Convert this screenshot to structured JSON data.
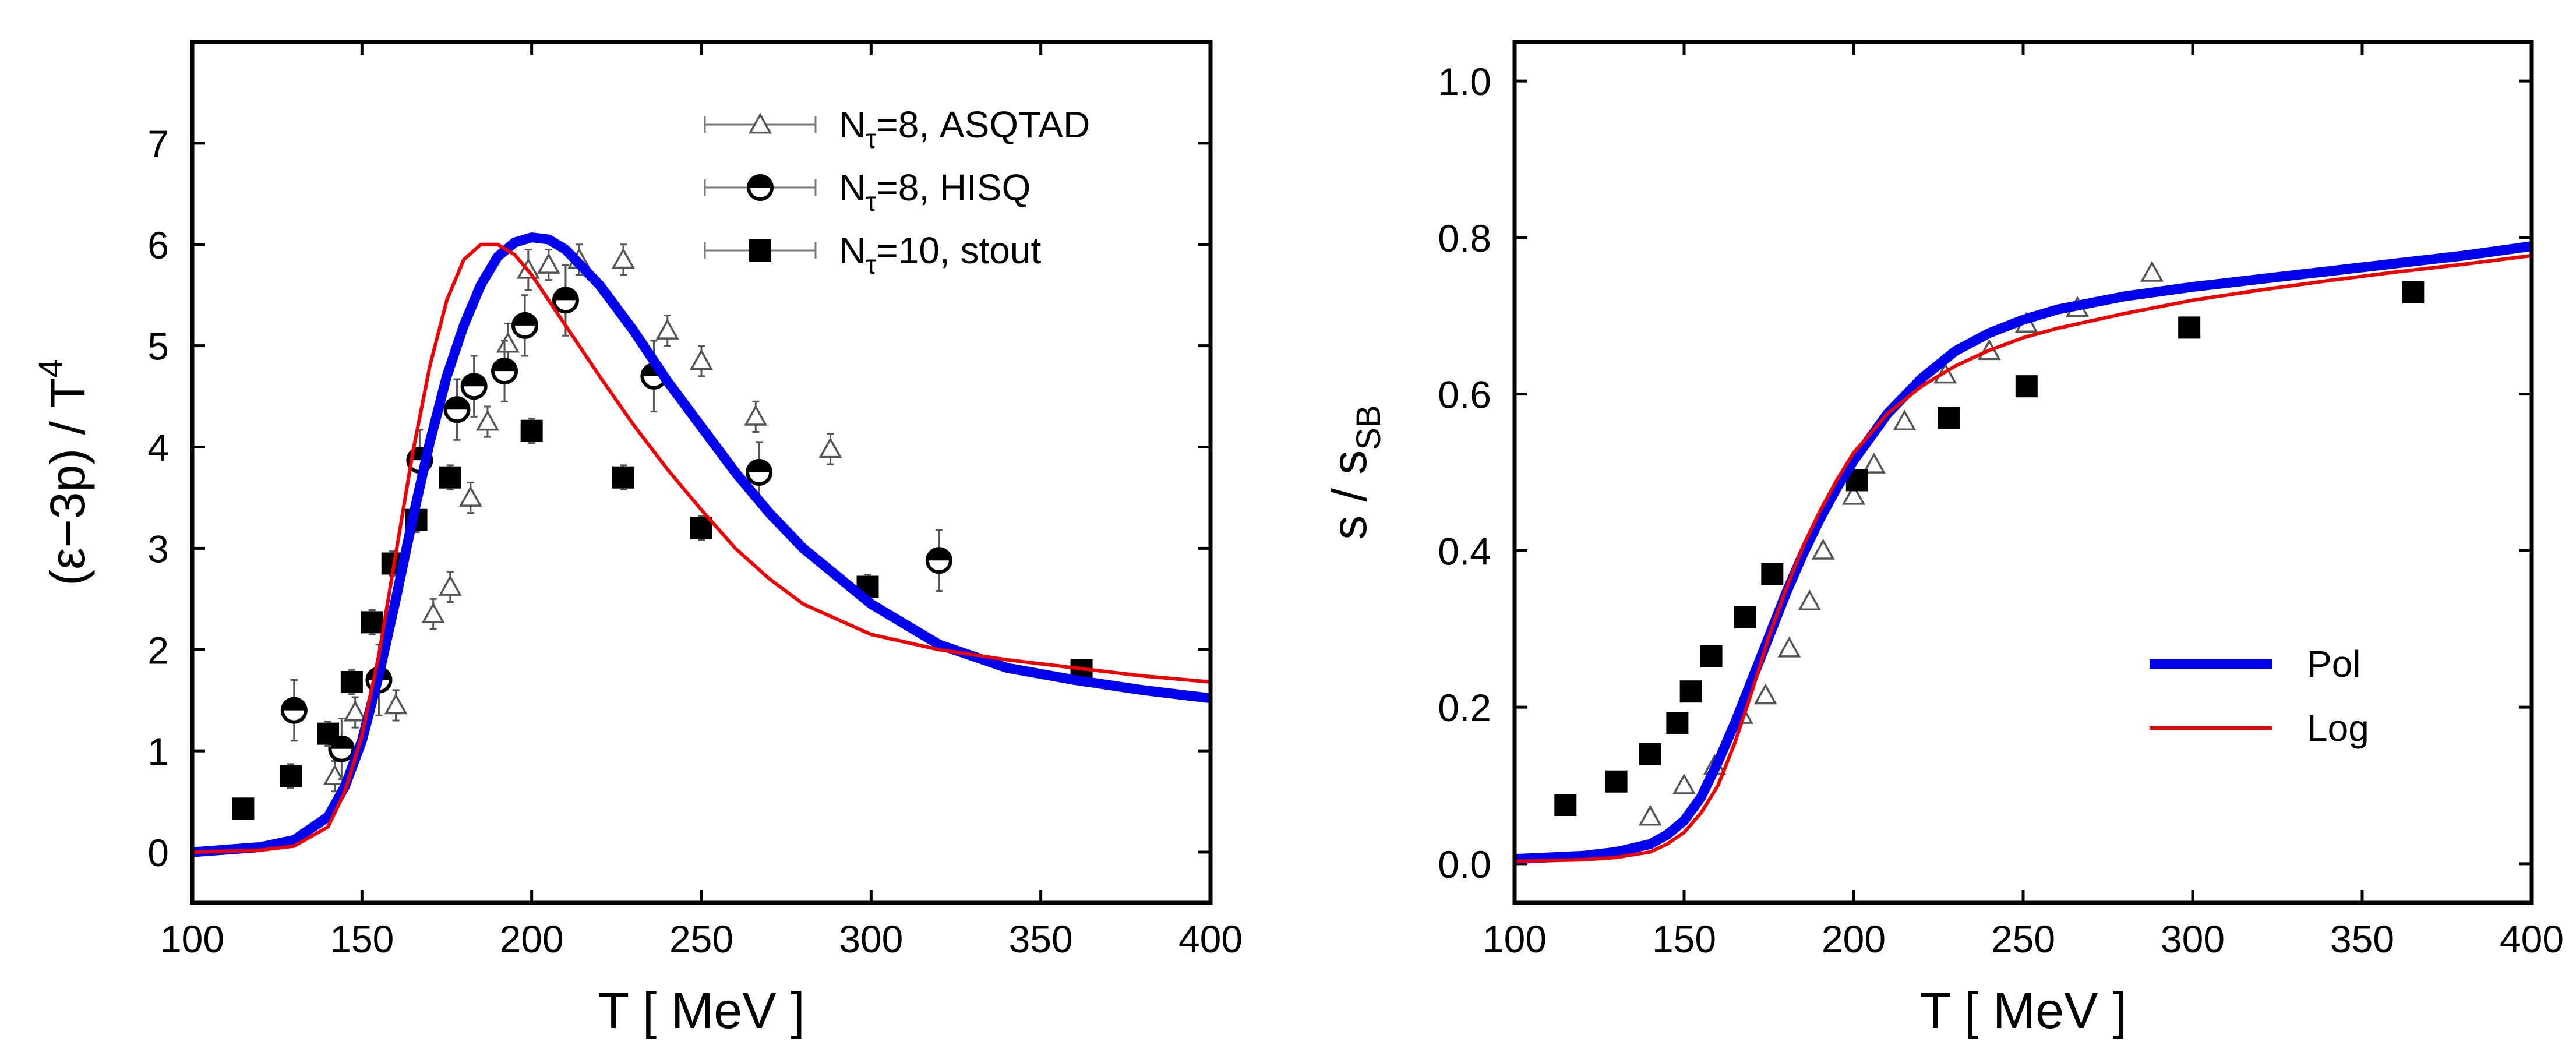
{
  "chart_data": [
    {
      "type": "scatter",
      "panel": "left",
      "xlabel": "T  [ MeV ]",
      "ylabel_parts": [
        "(ε−3p) / T",
        "4"
      ],
      "xlim": [
        100,
        400
      ],
      "ylim": [
        -0.5,
        8
      ],
      "xticks": [
        100,
        150,
        200,
        250,
        300,
        350,
        400
      ],
      "yticks": [
        0,
        1,
        2,
        3,
        4,
        5,
        6,
        7
      ],
      "legend_position": "top-right",
      "grid": false,
      "series": [
        {
          "name": "Nτ=8, ASQTAD",
          "legend_parts": [
            "N",
            "τ",
            "=8, ASQTAD"
          ],
          "marker": "open-triangle",
          "color": "#555555",
          "x": [
            142,
            148,
            160,
            171,
            176,
            182,
            187,
            193,
            199,
            205,
            214,
            227,
            240,
            250,
            266,
            288
          ],
          "y": [
            0.75,
            1.38,
            1.45,
            2.35,
            2.62,
            3.5,
            4.25,
            5.02,
            5.75,
            5.8,
            5.85,
            5.85,
            5.15,
            4.85,
            4.3,
            3.98
          ],
          "err": [
            0.15,
            0.15,
            0.15,
            0.15,
            0.15,
            0.15,
            0.15,
            0.2,
            0.2,
            0.15,
            0.15,
            0.15,
            0.15,
            0.15,
            0.15,
            0.15
          ]
        },
        {
          "name": "Nτ=8, HISQ",
          "legend_parts": [
            "N",
            "τ",
            "=8, HISQ"
          ],
          "marker": "half-filled-circle",
          "color": "#000000",
          "x": [
            130,
            144,
            155,
            167,
            178,
            183,
            192,
            198,
            210,
            236,
            267,
            320
          ],
          "y": [
            1.4,
            1.02,
            1.7,
            3.87,
            4.37,
            4.6,
            4.75,
            5.2,
            5.45,
            4.7,
            3.75,
            2.88
          ],
          "err": [
            0.3,
            0.3,
            0.35,
            0.3,
            0.3,
            0.3,
            0.3,
            0.3,
            0.35,
            0.35,
            0.3,
            0.3
          ]
        },
        {
          "name": "Nτ=10, stout",
          "legend_parts": [
            "N",
            "τ",
            "=10, stout"
          ],
          "marker": "filled-square",
          "color": "#000000",
          "x": [
            115,
            129,
            140,
            147,
            153,
            159,
            166,
            176,
            200,
            227,
            250,
            299,
            362
          ],
          "y": [
            0.43,
            0.75,
            1.17,
            1.68,
            2.27,
            2.85,
            3.28,
            3.7,
            4.16,
            3.7,
            3.2,
            2.62,
            1.8
          ],
          "err": [
            0.1,
            0.12,
            0.12,
            0.12,
            0.12,
            0.12,
            0.12,
            0.12,
            0.12,
            0.12,
            0.12,
            0.12,
            0.1
          ]
        },
        {
          "name": "Pol",
          "type": "line",
          "color": "#0000ee",
          "x": [
            100,
            120,
            130,
            140,
            145,
            150,
            155,
            160,
            165,
            170,
            175,
            180,
            185,
            190,
            195,
            200,
            205,
            210,
            220,
            230,
            240,
            250,
            260,
            270,
            280,
            300,
            320,
            340,
            360,
            380,
            400
          ],
          "y": [
            0.0,
            0.05,
            0.12,
            0.35,
            0.65,
            1.1,
            1.75,
            2.5,
            3.3,
            4.05,
            4.7,
            5.2,
            5.6,
            5.88,
            6.02,
            6.07,
            6.05,
            5.95,
            5.6,
            5.15,
            4.65,
            4.2,
            3.75,
            3.35,
            3.0,
            2.45,
            2.05,
            1.82,
            1.7,
            1.6,
            1.52
          ]
        },
        {
          "name": "Log",
          "type": "line",
          "color": "#ee0000",
          "x": [
            100,
            120,
            130,
            140,
            145,
            150,
            155,
            160,
            165,
            170,
            175,
            180,
            185,
            190,
            195,
            200,
            205,
            210,
            220,
            230,
            240,
            250,
            260,
            270,
            280,
            300,
            320,
            340,
            360,
            380,
            400
          ],
          "y": [
            0.0,
            0.02,
            0.06,
            0.25,
            0.6,
            1.15,
            1.95,
            2.95,
            3.95,
            4.8,
            5.45,
            5.85,
            6.0,
            6.0,
            5.9,
            5.7,
            5.45,
            5.2,
            4.7,
            4.22,
            3.78,
            3.38,
            3.0,
            2.7,
            2.45,
            2.15,
            2.0,
            1.9,
            1.82,
            1.74,
            1.68
          ]
        }
      ]
    },
    {
      "type": "scatter",
      "panel": "right",
      "xlabel": "T  [ MeV ]",
      "ylabel_parts": [
        "s / s",
        "SB"
      ],
      "xlim": [
        100,
        400
      ],
      "ylim": [
        -0.05,
        1.05
      ],
      "xticks": [
        100,
        150,
        200,
        250,
        300,
        350,
        400
      ],
      "yticks": [
        0.0,
        0.2,
        0.4,
        0.6,
        0.8,
        1.0
      ],
      "ytick_labels": [
        "0.0",
        "0.2",
        "0.4",
        "0.6",
        "0.8",
        "1.0"
      ],
      "legend_position": "bottom-right",
      "grid": false,
      "series": [
        {
          "name": "open triangles",
          "marker": "open-triangle",
          "color": "#555555",
          "x": [
            140,
            150,
            159,
            167,
            174,
            181,
            187,
            191,
            200,
            206,
            215,
            227,
            240,
            251,
            266,
            288
          ],
          "y": [
            0.06,
            0.1,
            0.125,
            0.19,
            0.215,
            0.275,
            0.335,
            0.4,
            0.47,
            0.51,
            0.565,
            0.625,
            0.655,
            0.69,
            0.71,
            0.755
          ]
        },
        {
          "name": "filled squares",
          "marker": "filled-square",
          "color": "#000000",
          "x": [
            115,
            130,
            140,
            148,
            152,
            158,
            168,
            176,
            201,
            228,
            251,
            299,
            365
          ],
          "y": [
            0.075,
            0.105,
            0.14,
            0.18,
            0.22,
            0.265,
            0.315,
            0.37,
            0.49,
            0.57,
            0.61,
            0.685,
            0.73
          ]
        },
        {
          "name": "Pol",
          "type": "line",
          "color": "#0000ee",
          "x": [
            100,
            120,
            130,
            140,
            145,
            150,
            155,
            160,
            165,
            170,
            175,
            180,
            185,
            190,
            195,
            200,
            210,
            220,
            230,
            240,
            250,
            260,
            280,
            300,
            320,
            340,
            360,
            380,
            400
          ],
          "y": [
            0.006,
            0.01,
            0.015,
            0.025,
            0.037,
            0.055,
            0.085,
            0.13,
            0.18,
            0.235,
            0.29,
            0.345,
            0.395,
            0.44,
            0.48,
            0.515,
            0.575,
            0.62,
            0.655,
            0.678,
            0.695,
            0.708,
            0.725,
            0.737,
            0.747,
            0.757,
            0.767,
            0.777,
            0.789
          ]
        },
        {
          "name": "Log",
          "type": "line",
          "color": "#ee0000",
          "x": [
            100,
            120,
            130,
            140,
            145,
            150,
            155,
            160,
            165,
            170,
            175,
            180,
            185,
            190,
            195,
            200,
            210,
            220,
            230,
            240,
            250,
            260,
            280,
            300,
            320,
            340,
            360,
            380,
            400
          ],
          "y": [
            0.003,
            0.005,
            0.008,
            0.015,
            0.025,
            0.04,
            0.065,
            0.1,
            0.155,
            0.22,
            0.29,
            0.35,
            0.405,
            0.45,
            0.49,
            0.525,
            0.575,
            0.61,
            0.636,
            0.656,
            0.672,
            0.684,
            0.703,
            0.72,
            0.733,
            0.745,
            0.756,
            0.766,
            0.777
          ]
        }
      ],
      "legend_entries": [
        {
          "label": "Pol",
          "color": "#0000ee"
        },
        {
          "label": "Log",
          "color": "#ee0000"
        }
      ]
    }
  ]
}
